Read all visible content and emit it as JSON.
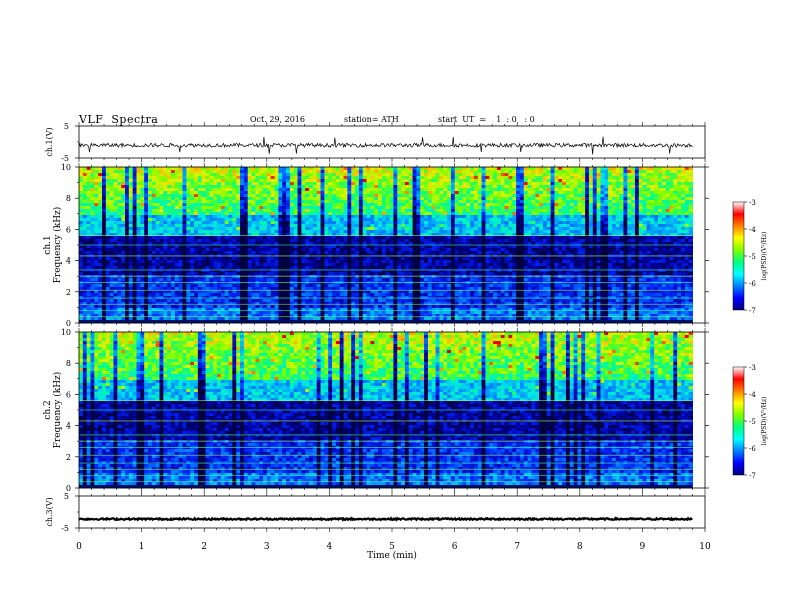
{
  "header": {
    "title": "VLF  Spectra",
    "date": "Oct. 29, 2016",
    "station": "station= ATH",
    "start_ut": "start  UT  =    1  : 0   : 0"
  },
  "panels": {
    "ch1": {
      "ylabel": "ch.1(V)",
      "ytick_top": "5",
      "ytick_bottom": "-5"
    },
    "spec1": {
      "ylabel_channel": "ch.1",
      "ylabel": "Frequency  (kHz)"
    },
    "spec2": {
      "ylabel_channel": "ch.2",
      "ylabel": "Frequency  (kHz)"
    },
    "ch3": {
      "ylabel": "ch.3(V)",
      "ytick_top": "5",
      "ytick_bottom": "-5"
    }
  },
  "colorbar": {
    "label": "log(PSD)(V²/Hz)",
    "ticks": [
      "-3",
      "-4",
      "-5",
      "-6",
      "-7"
    ],
    "colors": [
      "#000080",
      "#0000ff",
      "#0080ff",
      "#00ffff",
      "#00ff80",
      "#80ff00",
      "#ffff00",
      "#ff8000",
      "#ff0000",
      "#ffffff"
    ]
  },
  "chart_data": [
    {
      "type": "line",
      "title": "",
      "xlabel": "",
      "ylabel": "ch.1(V)",
      "xlim": [
        0,
        10
      ],
      "ylim": [
        -5,
        5
      ],
      "series": [
        {
          "description_values": "time series fluctuating around about -1 V, between about -3 and 1 V, ending near 9.8 min",
          "values_baseline": -1
        }
      ]
    },
    {
      "type": "heatmap",
      "xlabel": "",
      "ylabel": "Frequency  (kHz)",
      "xlim": [
        0,
        10
      ],
      "ylim": [
        0,
        10
      ],
      "data_end_min": 9.8,
      "yticks": [
        "0",
        "2",
        "4",
        "6",
        "8",
        "10"
      ],
      "colorbar_range": [
        -7,
        -3
      ]
    },
    {
      "type": "heatmap",
      "xlabel": "",
      "ylabel": "Frequency  (kHz)",
      "xlim": [
        0,
        10
      ],
      "ylim": [
        0,
        10
      ],
      "data_end_min": 9.8,
      "yticks": [
        "0",
        "2",
        "4",
        "6",
        "8",
        "10"
      ],
      "colorbar_range": [
        -7,
        -3
      ]
    },
    {
      "type": "line",
      "xlabel": "Time  (min)",
      "ylabel": "ch.3(V)",
      "xlim": [
        0,
        10
      ],
      "ylim": [
        -5,
        5
      ],
      "xticks": [
        "0",
        "1",
        "2",
        "3",
        "4",
        "5",
        "6",
        "7",
        "8",
        "9",
        "10"
      ],
      "series": [
        {
          "values_baseline": -2.2
        }
      ]
    }
  ]
}
